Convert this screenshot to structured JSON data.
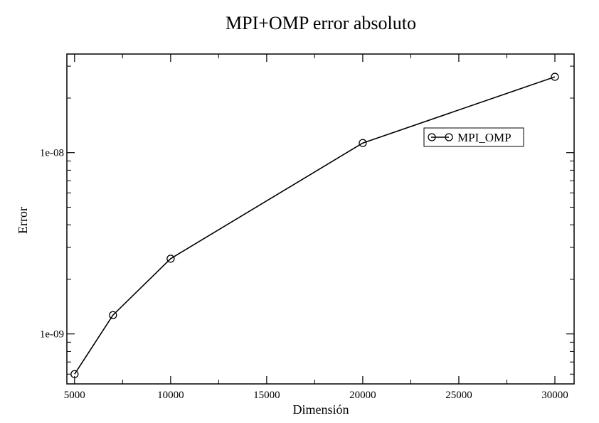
{
  "chart_data": {
    "type": "line",
    "title": "MPI+OMP error absoluto",
    "xlabel": "Dimensión",
    "ylabel": "Error",
    "x_scale": "linear",
    "y_scale": "log",
    "xlim": [
      4600,
      31000
    ],
    "ylim": [
      5.3e-10,
      3.5e-08
    ],
    "x_ticks": [
      5000,
      10000,
      15000,
      20000,
      25000,
      30000
    ],
    "x_tick_labels": [
      "5000",
      "10000",
      "15000",
      "20000",
      "25000",
      "30000"
    ],
    "y_ticks": [
      1e-09,
      1e-08
    ],
    "y_tick_labels": [
      "1e-09",
      "1e-08"
    ],
    "grid": false,
    "legend_position": "top-right",
    "marker": "open-circle",
    "series": [
      {
        "name": "MPI_OMP",
        "color": "#000000",
        "x": [
          5000,
          7000,
          10000,
          20000,
          30000
        ],
        "y": [
          6e-10,
          1.27e-09,
          2.6e-09,
          1.13e-08,
          2.62e-08
        ]
      }
    ]
  }
}
